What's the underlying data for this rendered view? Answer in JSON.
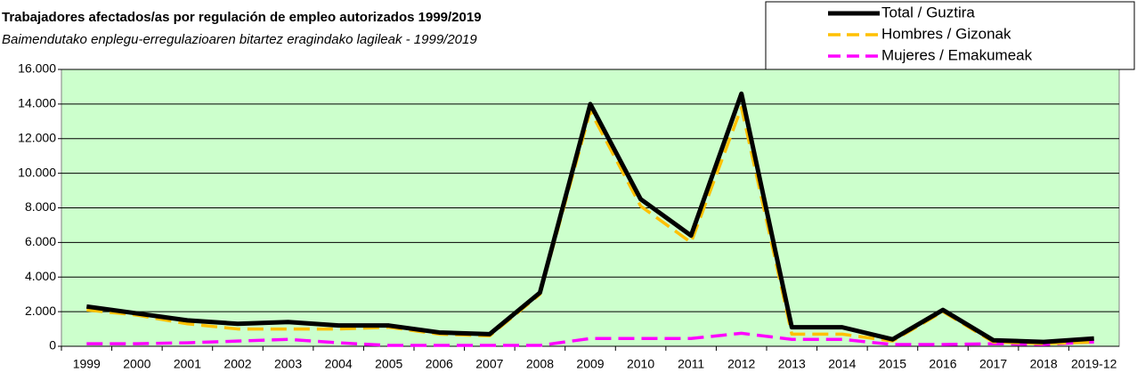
{
  "chart_data": {
    "type": "line",
    "title": "Trabajadores afectados/as por regulación de empleo autorizados 1999/2019",
    "subtitle": "Baimendutako enplegu-erregulazioaren bitartez eragindako lagileak - 1999/2019",
    "categories": [
      "1999",
      "2000",
      "2001",
      "2002",
      "2003",
      "2004",
      "2005",
      "2006",
      "2007",
      "2008",
      "2009",
      "2010",
      "2011",
      "2012",
      "2013",
      "2014",
      "2015",
      "2016",
      "2017",
      "2018",
      "2019-12"
    ],
    "series": [
      {
        "name": "Total / Guztira",
        "color": "#000000",
        "line_style": "solid",
        "values": [
          2300,
          1900,
          1500,
          1300,
          1400,
          1200,
          1200,
          800,
          700,
          3100,
          14000,
          8500,
          6400,
          14600,
          1100,
          1100,
          400,
          2100,
          350,
          250,
          450
        ]
      },
      {
        "name": "Hombres / Gizonak",
        "color": "#ffc000",
        "line_style": "dashed",
        "values": [
          2100,
          1800,
          1300,
          1000,
          1000,
          1000,
          1100,
          700,
          600,
          3000,
          13600,
          8100,
          6000,
          13800,
          700,
          700,
          300,
          2000,
          250,
          150,
          250
        ]
      },
      {
        "name": "Mujeres / Emakumeak",
        "color": "#ff00ff",
        "line_style": "dashed",
        "values": [
          150,
          150,
          200,
          300,
          400,
          200,
          50,
          50,
          50,
          50,
          450,
          450,
          450,
          750,
          400,
          400,
          100,
          100,
          150,
          100,
          250
        ]
      }
    ],
    "ylim": [
      0,
      16000
    ],
    "yticks": [
      0,
      {
        "value": 2000,
        "label": "2.000"
      },
      {
        "value": 4000,
        "label": "4.000"
      },
      {
        "value": 6000,
        "label": "6.000"
      },
      {
        "value": 8000,
        "label": "8.000"
      },
      {
        "value": 10000,
        "label": "10.000"
      },
      {
        "value": 12000,
        "label": "12.000"
      },
      {
        "value": 14000,
        "label": "14.000"
      },
      {
        "value": 16000,
        "label": "16.000"
      }
    ],
    "grid": true,
    "legend": "top-right",
    "plot_background": "#ccffcc"
  }
}
